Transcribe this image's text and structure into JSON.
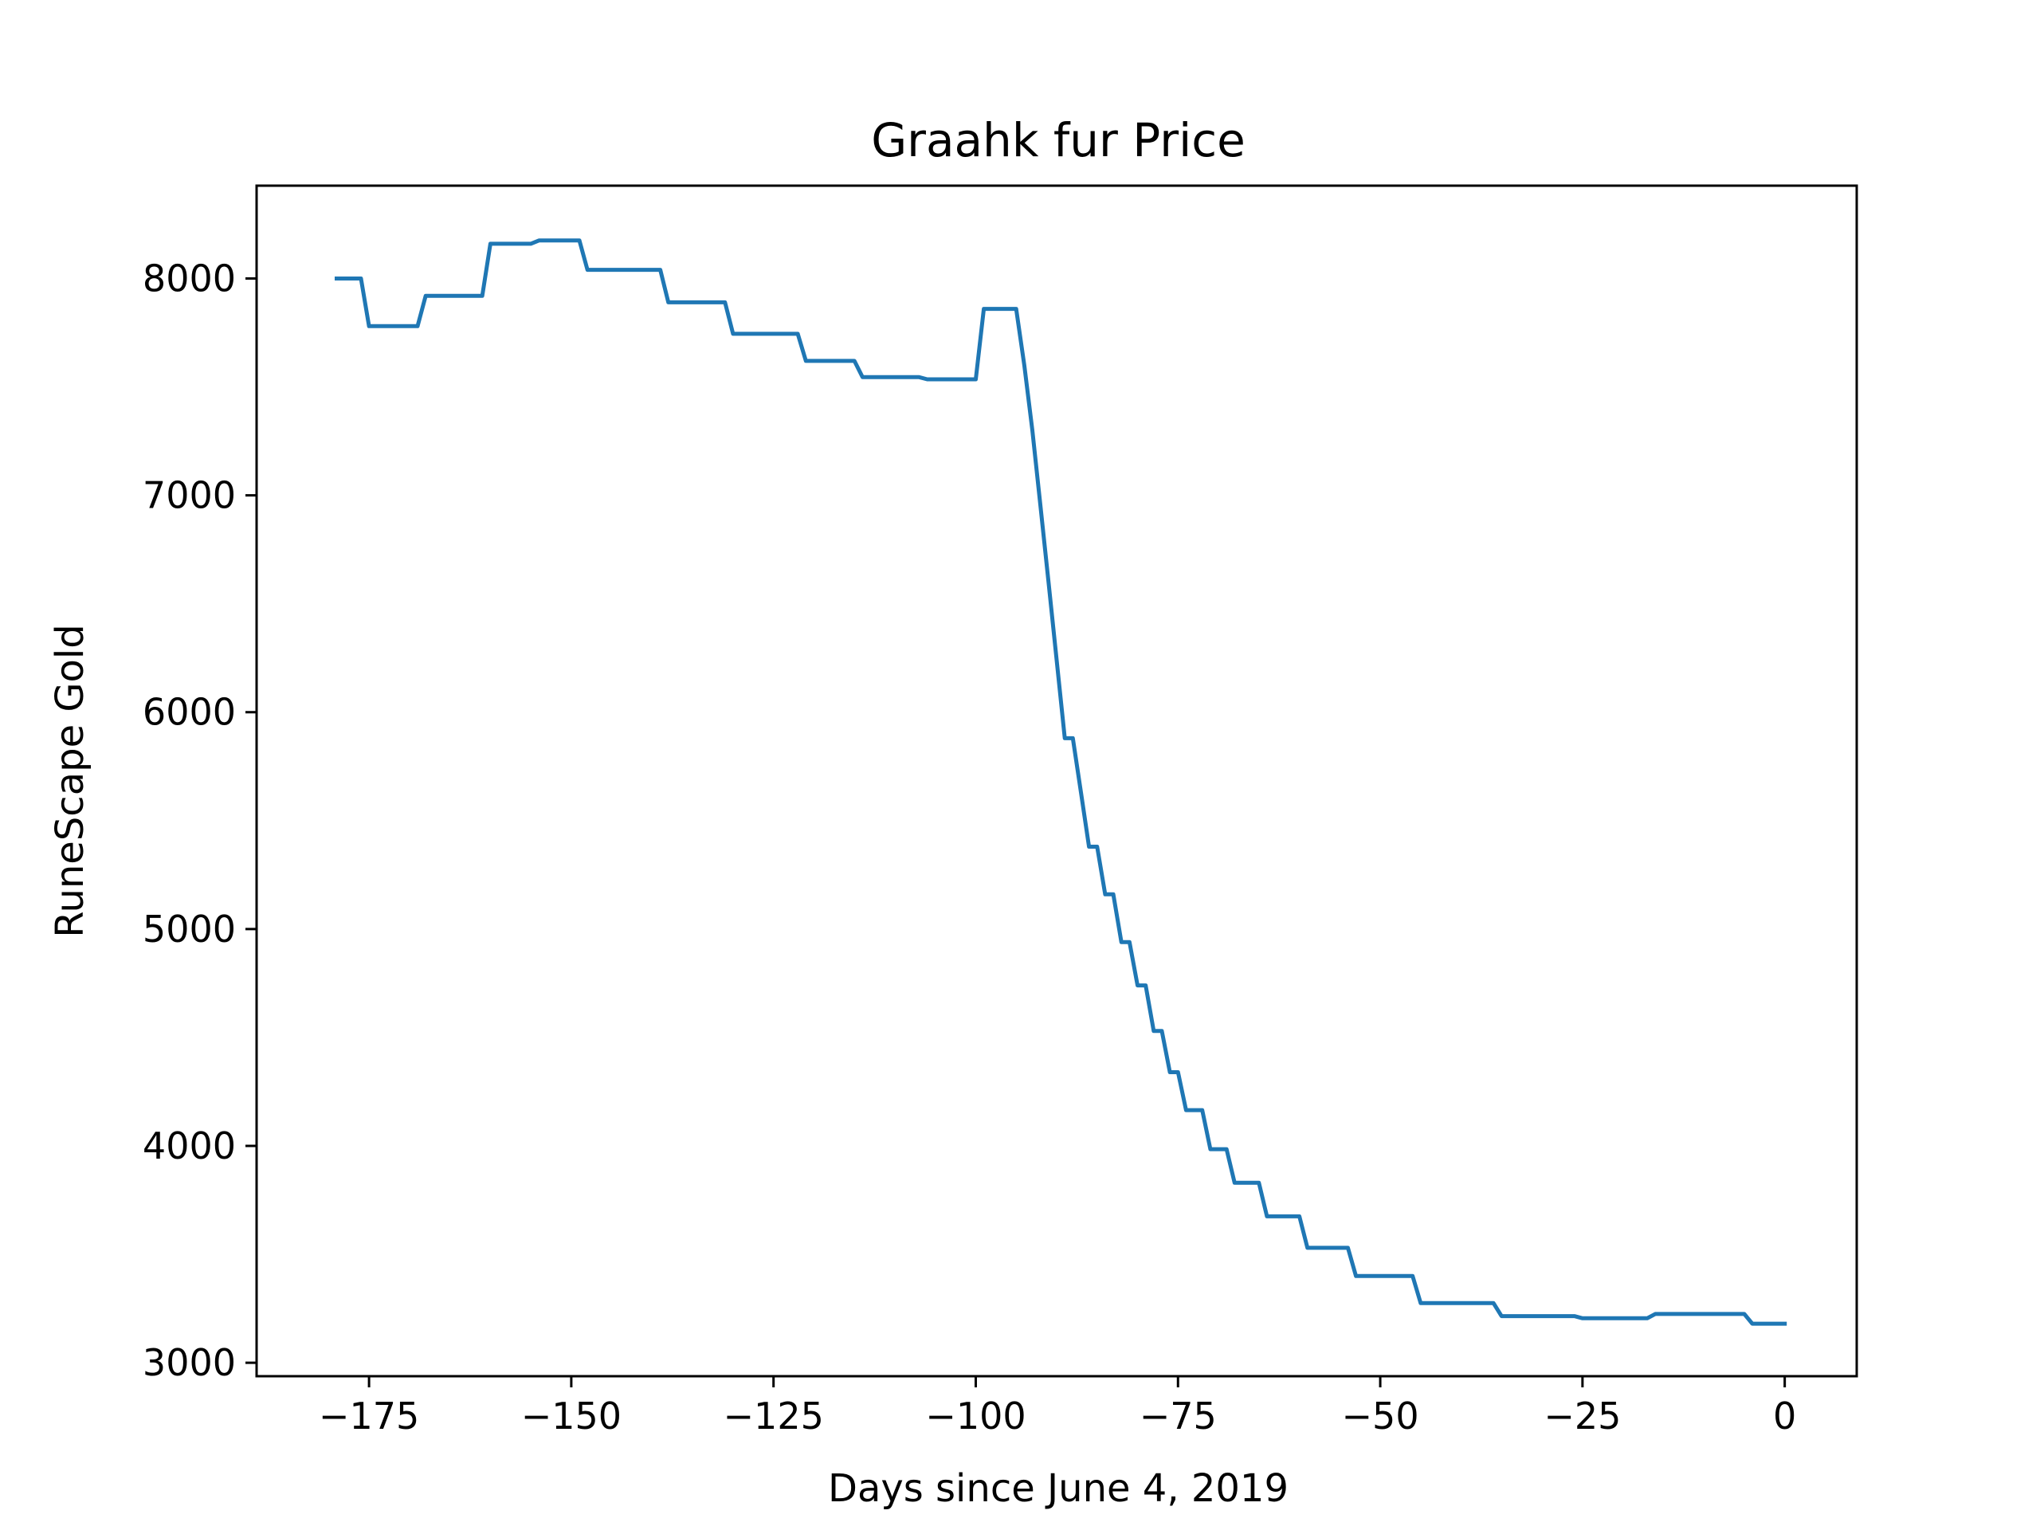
{
  "chart_data": {
    "type": "line",
    "title": "Graahk fur Price",
    "xlabel": "Days since June 4, 2019",
    "ylabel": "RuneScape Gold",
    "xlim": [
      -188.9,
      8.9
    ],
    "ylim": [
      2938,
      8428
    ],
    "xticks": [
      -175,
      -150,
      -125,
      -100,
      -75,
      -50,
      -25,
      0
    ],
    "xtick_labels": [
      "−175",
      "−150",
      "−125",
      "−100",
      "−75",
      "−50",
      "−25",
      "0"
    ],
    "yticks": [
      3000,
      4000,
      5000,
      6000,
      7000,
      8000
    ],
    "ytick_labels": [
      "3000",
      "4000",
      "5000",
      "6000",
      "7000",
      "8000"
    ],
    "grid": false,
    "legend": "none",
    "series": [
      {
        "color": "#1f77b4",
        "x": [
          -179,
          -176,
          -175,
          -169,
          -168,
          -161,
          -160,
          -155,
          -154,
          -149,
          -148,
          -139,
          -138,
          -131,
          -130,
          -122,
          -121,
          -115,
          -114,
          -107,
          -106,
          -100,
          -99,
          -95,
          -94,
          -93,
          -92,
          -91,
          -90,
          -89,
          -88,
          -87,
          -86,
          -85,
          -84,
          -83,
          -82,
          -81,
          -80,
          -79,
          -78,
          -77,
          -76,
          -75,
          -74,
          -73,
          -72,
          -71,
          -70,
          -69,
          -68,
          -67,
          -66,
          -65,
          -64,
          -63,
          -62,
          -61,
          -60,
          -59,
          -58,
          -57,
          -56,
          -55,
          -54,
          -53,
          -52,
          -46,
          -45,
          -36,
          -35,
          -26,
          -25,
          -17,
          -16,
          -5,
          -4,
          0
        ],
        "y": [
          8000,
          8000,
          7780,
          7780,
          7920,
          7920,
          8160,
          8160,
          8175,
          8175,
          8040,
          8040,
          7890,
          7890,
          7745,
          7745,
          7620,
          7620,
          7545,
          7545,
          7535,
          7535,
          7860,
          7860,
          7600,
          7300,
          6950,
          6600,
          6240,
          5880,
          5880,
          5630,
          5380,
          5380,
          5160,
          5160,
          4940,
          4940,
          4740,
          4740,
          4530,
          4530,
          4340,
          4340,
          4165,
          4165,
          4165,
          3985,
          3985,
          3985,
          3830,
          3830,
          3830,
          3830,
          3675,
          3675,
          3675,
          3675,
          3675,
          3530,
          3530,
          3530,
          3530,
          3530,
          3530,
          3400,
          3400,
          3400,
          3275,
          3275,
          3215,
          3215,
          3205,
          3205,
          3225,
          3225,
          3180,
          3180
        ]
      }
    ]
  }
}
